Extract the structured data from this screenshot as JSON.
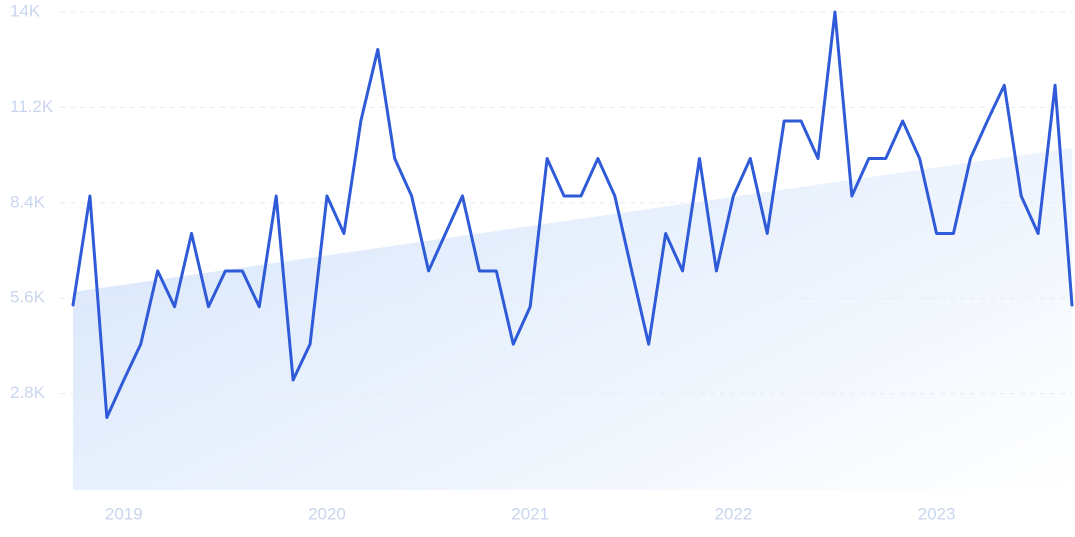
{
  "chart_data": {
    "type": "line",
    "categories": [
      null,
      null,
      null,
      "2019",
      null,
      null,
      null,
      null,
      null,
      null,
      null,
      null,
      null,
      null,
      null,
      "2020",
      null,
      null,
      null,
      null,
      null,
      null,
      null,
      null,
      null,
      null,
      null,
      "2021",
      null,
      null,
      null,
      null,
      null,
      null,
      null,
      null,
      null,
      null,
      null,
      "2022",
      null,
      null,
      null,
      null,
      null,
      null,
      null,
      null,
      null,
      null,
      null,
      "2023",
      null,
      null,
      null,
      null,
      null,
      null,
      null,
      null
    ],
    "series": [
      {
        "color": "#2f5bd8",
        "values": [
          5400,
          8600,
          2100,
          3200,
          4250,
          6400,
          5350,
          7500,
          5350,
          6400,
          6400,
          5350,
          8600,
          3200,
          4250,
          8600,
          7500,
          10800,
          12900,
          9700,
          8600,
          6400,
          7500,
          8600,
          6400,
          6400,
          4250,
          5350,
          9700,
          8600,
          8600,
          9700,
          8600,
          6400,
          4250,
          7500,
          6400,
          9700,
          6400,
          8600,
          9700,
          7500,
          10800,
          10800,
          9700,
          14000,
          8600,
          9700,
          9700,
          10800,
          9700,
          7500,
          7500,
          9700,
          10800,
          11850,
          8600,
          7500,
          11850,
          5400
        ]
      }
    ],
    "ylim": [
      0,
      14000
    ],
    "yticks": [
      {
        "value": 2800,
        "label": "2.8K"
      },
      {
        "value": 5600,
        "label": "5.6K"
      },
      {
        "value": 8400,
        "label": "8.4K"
      },
      {
        "value": 11200,
        "label": "11.2K"
      },
      {
        "value": 14000,
        "label": "14K"
      }
    ],
    "grid": true
  }
}
